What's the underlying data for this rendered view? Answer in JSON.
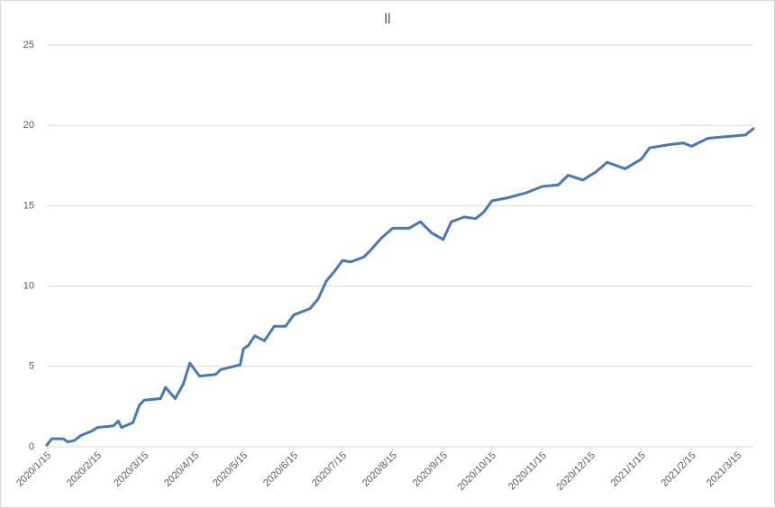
{
  "chart_data": {
    "type": "line",
    "title": "ll",
    "x": [
      "2020/1/15",
      "2020/1/18",
      "2020/1/25",
      "2020/1/28",
      "2020/2/1",
      "2020/2/5",
      "2020/2/12",
      "2020/2/15",
      "2020/2/25",
      "2020/2/28",
      "2020/3/1",
      "2020/3/8",
      "2020/3/12",
      "2020/3/15",
      "2020/3/25",
      "2020/3/28",
      "2020/4/3",
      "2020/4/8",
      "2020/4/12",
      "2020/4/15",
      "2020/4/18",
      "2020/4/28",
      "2020/5/1",
      "2020/5/13",
      "2020/5/15",
      "2020/5/18",
      "2020/5/22",
      "2020/5/28",
      "2020/6/3",
      "2020/6/10",
      "2020/6/15",
      "2020/6/20",
      "2020/6/25",
      "2020/6/30",
      "2020/7/5",
      "2020/7/10",
      "2020/7/15",
      "2020/7/20",
      "2020/7/28",
      "2020/8/1",
      "2020/8/8",
      "2020/8/15",
      "2020/8/25",
      "2020/9/1",
      "2020/9/8",
      "2020/9/15",
      "2020/9/20",
      "2020/9/28",
      "2020/10/5",
      "2020/10/10",
      "2020/10/15",
      "2020/10/25",
      "2020/11/5",
      "2020/11/15",
      "2020/11/25",
      "2020/12/1",
      "2020/12/10",
      "2020/12/18",
      "2020/12/25",
      "2021/1/5",
      "2021/1/15",
      "2021/1/20",
      "2021/2/1",
      "2021/2/10",
      "2021/2/15",
      "2021/2/25",
      "2021/3/8",
      "2021/3/20",
      "2021/3/25"
    ],
    "values": [
      0.1,
      0.5,
      0.5,
      0.3,
      0.4,
      0.7,
      1.0,
      1.2,
      1.3,
      1.6,
      1.2,
      1.5,
      2.6,
      2.9,
      3.0,
      3.7,
      3.0,
      3.9,
      5.2,
      4.8,
      4.4,
      4.5,
      4.8,
      5.1,
      6.1,
      6.3,
      6.9,
      6.6,
      7.5,
      7.5,
      8.2,
      8.4,
      8.6,
      9.2,
      10.3,
      10.9,
      11.6,
      11.5,
      11.8,
      12.2,
      13.0,
      13.6,
      13.6,
      14.0,
      13.3,
      12.9,
      14.0,
      14.3,
      14.2,
      14.6,
      15.3,
      15.5,
      15.8,
      16.2,
      16.3,
      16.9,
      16.6,
      17.1,
      17.7,
      17.3,
      17.9,
      18.6,
      18.8,
      18.9,
      18.7,
      19.2,
      19.3,
      19.4,
      19.8
    ],
    "color": "#4a78b5",
    "xlim": [
      "2020/1/15",
      "2021/3/25"
    ],
    "xticks": [
      "2020/1/15",
      "2020/2/15",
      "2020/3/15",
      "2020/4/15",
      "2020/5/15",
      "2020/6/15",
      "2020/7/15",
      "2020/8/15",
      "2020/9/15",
      "2020/10/15",
      "2020/11/15",
      "2020/12/15",
      "2021/1/15",
      "2021/2/15",
      "2021/3/15"
    ],
    "ylim": [
      0,
      25
    ],
    "yticks": [
      0,
      5,
      10,
      15,
      20,
      25
    ],
    "grid": true
  }
}
